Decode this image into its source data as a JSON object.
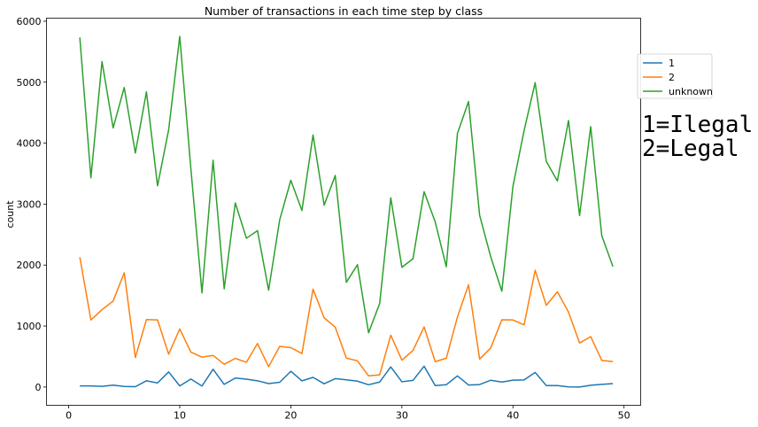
{
  "chart_data": {
    "type": "line",
    "title": "Number of transactions in each time step by class",
    "xlabel": "",
    "ylabel": "count",
    "xlim": [
      -2,
      51.5
    ],
    "ylim": [
      -300,
      6050
    ],
    "xticks": [
      0,
      10,
      20,
      30,
      40,
      50
    ],
    "yticks": [
      0,
      1000,
      2000,
      3000,
      4000,
      5000,
      6000
    ],
    "grid": false,
    "legend_position": "right",
    "x": [
      1,
      2,
      3,
      4,
      5,
      6,
      7,
      8,
      9,
      10,
      11,
      12,
      13,
      14,
      15,
      16,
      17,
      18,
      19,
      20,
      21,
      22,
      23,
      24,
      25,
      26,
      27,
      28,
      29,
      30,
      31,
      32,
      33,
      34,
      35,
      36,
      37,
      38,
      39,
      40,
      41,
      42,
      43,
      44,
      45,
      46,
      47,
      48,
      49
    ],
    "series": [
      {
        "name": "1",
        "color": "#1f77b4",
        "values": [
          17,
          18,
          11,
          30,
          8,
          5,
          102,
          67,
          248,
          18,
          131,
          16,
          291,
          43,
          147,
          128,
          102,
          56,
          78,
          258,
          101,
          158,
          53,
          137,
          118,
          96,
          37,
          82,
          330,
          86,
          108,
          342,
          24,
          37,
          182,
          33,
          40,
          111,
          81,
          112,
          116,
          239,
          24,
          24,
          2,
          0,
          29,
          44,
          56
        ]
      },
      {
        "name": "2",
        "color": "#ff7f0e",
        "values": [
          2130,
          1099,
          1268,
          1410,
          1874,
          484,
          1105,
          1100,
          538,
          953,
          572,
          490,
          518,
          373,
          470,
          406,
          713,
          333,
          666,
          646,
          549,
          1606,
          1135,
          981,
          474,
          429,
          183,
          200,
          850,
          440,
          600,
          985,
          416,
          472,
          1147,
          1676,
          458,
          640,
          1103,
          1100,
          1019,
          1915,
          1339,
          1562,
          1230,
          722,
          826,
          436,
          417
        ]
      },
      {
        "name": "unknown",
        "color": "#2ca02c",
        "values": [
          5734,
          3431,
          5338,
          4250,
          4912,
          3838,
          4841,
          3300,
          4220,
          5750,
          3578,
          1544,
          3719,
          1611,
          3019,
          2440,
          2565,
          1588,
          2744,
          3391,
          2895,
          4134,
          2983,
          3470,
          1717,
          2007,
          889,
          1370,
          3104,
          1963,
          2105,
          3204,
          2708,
          1972,
          4158,
          4682,
          2817,
          2136,
          1571,
          3292,
          4204,
          4992,
          3701,
          3380,
          4372,
          2812,
          4271,
          2480,
          1976
        ]
      }
    ]
  },
  "annotation": {
    "line1": "1=Ilegal",
    "line2": "2=Legal"
  }
}
